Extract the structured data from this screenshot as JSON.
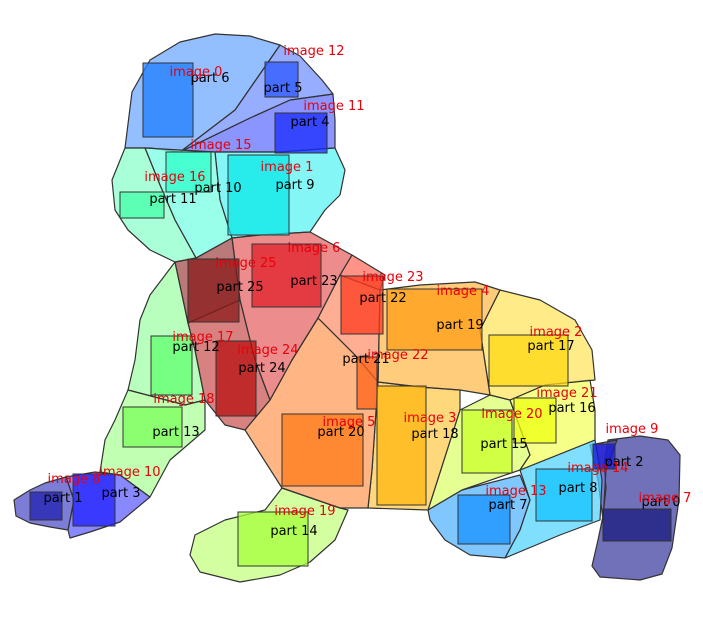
{
  "regions": [
    {
      "part": "part 0",
      "image": "image 7",
      "fill": "#3a3a9e",
      "rect_fill": "#1a1a80"
    },
    {
      "part": "part 1",
      "image": "image 8",
      "fill": "#4b4bc8",
      "rect_fill": "#2020b0"
    },
    {
      "part": "part 2",
      "image": "image 9",
      "fill": "#4a4ab6",
      "rect_fill": "#1515d8"
    },
    {
      "part": "part 3",
      "image": "image 10",
      "fill": "#5a5aff",
      "rect_fill": "#2020ff"
    },
    {
      "part": "part 4",
      "image": "image 11",
      "fill": "#5e6cff",
      "rect_fill": "#1a2cff"
    },
    {
      "part": "part 5",
      "image": "image 12",
      "fill": "#6f8dff",
      "rect_fill": "#2c58ff"
    },
    {
      "part": "part 6",
      "image": "image 0",
      "fill": "#6aa5ff",
      "rect_fill": "#1f7eff"
    },
    {
      "part": "part 7",
      "image": "image 13",
      "fill": "#4fb2ff",
      "rect_fill": "#1592ff"
    },
    {
      "part": "part 8",
      "image": "image 14",
      "fill": "#4fd3ff",
      "rect_fill": "#12c3ff"
    },
    {
      "part": "part 9",
      "image": "image 1",
      "fill": "#55f2f2",
      "rect_fill": "#0ae8e8"
    },
    {
      "part": "part 10",
      "image": "image 15",
      "fill": "#72ffe2",
      "rect_fill": "#2cffc8"
    },
    {
      "part": "part 11",
      "image": "image 16",
      "fill": "#88ffc8",
      "rect_fill": "#44ffaa"
    },
    {
      "part": "part 12",
      "image": "image 17",
      "fill": "#9cffa4",
      "rect_fill": "#60ff70"
    },
    {
      "part": "part 13",
      "image": "image 18",
      "fill": "#a9ff96",
      "rect_fill": "#7aff5a"
    },
    {
      "part": "part 14",
      "image": "image 19",
      "fill": "#c4ff7c",
      "rect_fill": "#a6ff3c"
    },
    {
      "part": "part 15",
      "image": "image 20",
      "fill": "#dcff6a",
      "rect_fill": "#c8ff2a"
    },
    {
      "part": "part 16",
      "image": "image 21",
      "fill": "#f2ff5a",
      "rect_fill": "#eeff10"
    },
    {
      "part": "part 17",
      "image": "image 2",
      "fill": "#ffe35a",
      "rect_fill": "#ffd810"
    },
    {
      "part": "part 18",
      "image": "image 3",
      "fill": "#ffc948",
      "rect_fill": "#ffb710"
    },
    {
      "part": "part 19",
      "image": "image 4",
      "fill": "#ffb84a",
      "rect_fill": "#ff9e15"
    },
    {
      "part": "part 20",
      "image": "image 5",
      "fill": "#ff9a55",
      "rect_fill": "#ff7a18"
    },
    {
      "part": "part 21",
      "image": "image 22",
      "fill": "#ff8f6a",
      "rect_fill": "#ff6318"
    },
    {
      "part": "part 22",
      "image": "image 23",
      "fill": "#ff6a5a",
      "rect_fill": "#ff3a1e"
    },
    {
      "part": "part 23",
      "image": "image 6",
      "fill": "#e66060",
      "rect_fill": "#e0202a"
    },
    {
      "part": "part 24",
      "image": "image 24",
      "fill": "#c85050",
      "rect_fill": "#b81010"
    },
    {
      "part": "part 25",
      "image": "image 25",
      "fill": "#a04646",
      "rect_fill": "#8a1a1a"
    }
  ]
}
